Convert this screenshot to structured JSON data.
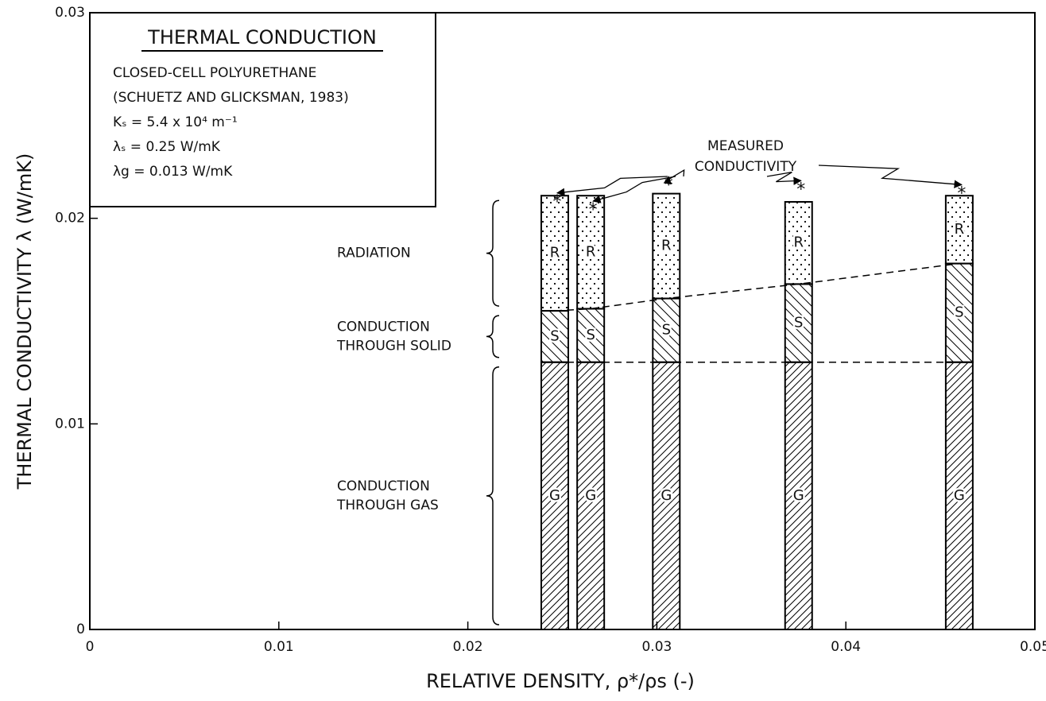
{
  "chart_data": {
    "type": "stacked_bar",
    "x_label": "RELATIVE DENSITY, ρ*/ρs (-)",
    "y_label": "THERMAL CONDUCTIVITY λ (W/mK)",
    "x": [
      0.0246,
      0.0265,
      0.0305,
      0.0375,
      0.046
    ],
    "series": [
      {
        "name": "G",
        "color": "#000000",
        "values": [
          0.013,
          0.013,
          0.013,
          0.013,
          0.013
        ]
      },
      {
        "name": "S",
        "color": "#000000",
        "values": [
          0.0025,
          0.0026,
          0.0031,
          0.0038,
          0.0048
        ]
      },
      {
        "name": "R",
        "color": "#000000",
        "values": [
          0.0056,
          0.0055,
          0.0051,
          0.004,
          0.0033
        ]
      }
    ],
    "measured": {
      "text": [
        "MEASURED",
        "CONDUCTIVITY"
      ],
      "values": [
        0.021,
        0.0206,
        0.0218,
        0.0216,
        0.0214
      ]
    },
    "component_labels": [
      [
        "CONDUCTION",
        "THROUGH GAS"
      ],
      [
        "CONDUCTION",
        "THROUGH SOLID"
      ],
      [
        "RADIATION"
      ]
    ],
    "legend_box": {
      "title": "THERMAL CONDUCTION",
      "lines": [
        "CLOSED-CELL POLYURETHANE",
        "(SCHUETZ AND GLICKSMAN, 1983)",
        "Kₛ = 5.4 x 10⁴ m⁻¹",
        "λₛ = 0.25 W/mK",
        "λg = 0.013 W/mK"
      ]
    },
    "xlim": [
      0,
      0.05
    ],
    "ylim": [
      0,
      0.03
    ],
    "xticks": [
      0,
      0.01,
      0.02,
      0.03,
      0.04,
      0.05
    ],
    "yticks": [
      0,
      0.01,
      0.02,
      0.03
    ]
  }
}
